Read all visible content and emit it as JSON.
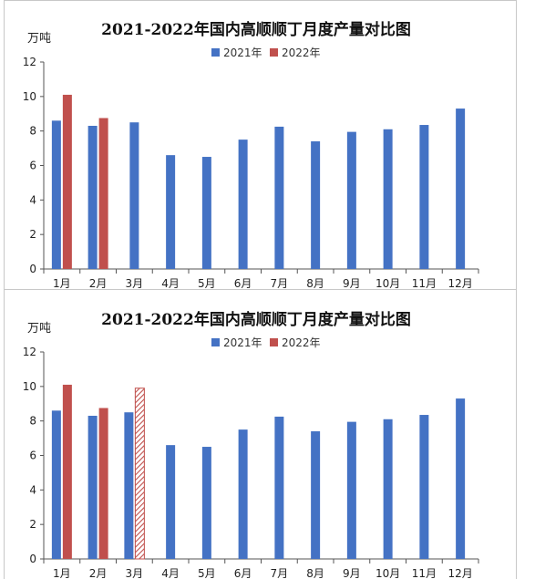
{
  "chart_data": [
    {
      "type": "bar",
      "title": "2021-2022年国内高顺顺丁月度产量对比图",
      "unit_label": "万吨",
      "categories": [
        "1月",
        "2月",
        "3月",
        "4月",
        "5月",
        "6月",
        "7月",
        "8月",
        "9月",
        "10月",
        "11月",
        "12月"
      ],
      "series": [
        {
          "name": "2021年",
          "color": "#4472c4",
          "values": [
            8.6,
            8.3,
            8.5,
            6.6,
            6.5,
            7.5,
            8.25,
            7.4,
            7.95,
            8.1,
            8.35,
            9.3
          ]
        },
        {
          "name": "2022年",
          "color": "#c0504d",
          "values": [
            10.1,
            8.75,
            null,
            null,
            null,
            null,
            null,
            null,
            null,
            null,
            null,
            null
          ]
        }
      ],
      "ylim": [
        0,
        12
      ],
      "yticks": [
        0,
        2,
        4,
        6,
        8,
        10,
        12
      ],
      "legend_position": "top-center",
      "grid": false
    },
    {
      "type": "bar",
      "title": "2021-2022年国内高顺顺丁月度产量对比图",
      "unit_label": "万吨",
      "categories": [
        "1月",
        "2月",
        "3月",
        "4月",
        "5月",
        "6月",
        "7月",
        "8月",
        "9月",
        "10月",
        "11月",
        "12月"
      ],
      "series": [
        {
          "name": "2021年",
          "color": "#4472c4",
          "values": [
            8.6,
            8.3,
            8.5,
            6.6,
            6.5,
            7.5,
            8.25,
            7.4,
            7.95,
            8.1,
            8.35,
            9.3
          ]
        },
        {
          "name": "2022年",
          "color": "#c0504d",
          "values": [
            10.1,
            8.75,
            9.9,
            null,
            null,
            null,
            null,
            null,
            null,
            null,
            null,
            null
          ],
          "hatched": [
            false,
            false,
            true,
            false,
            false,
            false,
            false,
            false,
            false,
            false,
            false,
            false
          ]
        }
      ],
      "ylim": [
        0,
        12
      ],
      "yticks": [
        0,
        2,
        4,
        6,
        8,
        10,
        12
      ],
      "legend_position": "top-center",
      "grid": false
    }
  ]
}
